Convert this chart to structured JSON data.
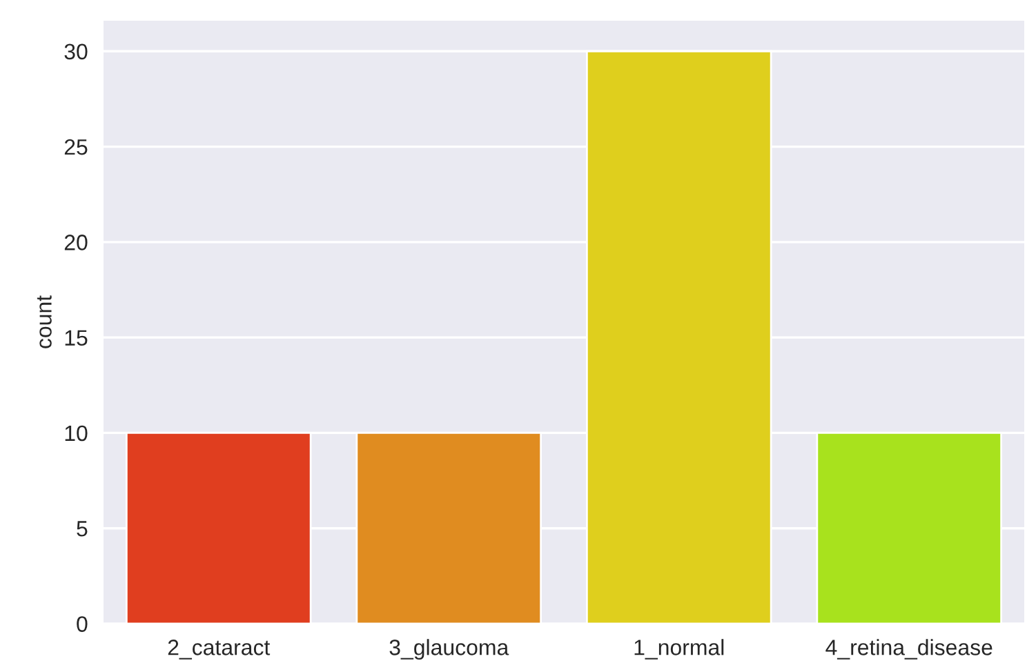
{
  "chart_data": {
    "type": "bar",
    "ylabel": "count",
    "categories": [
      "2_cataract",
      "3_glaucoma",
      "1_normal",
      "4_retina_disease"
    ],
    "values": [
      10,
      10,
      30,
      10
    ],
    "colors": [
      "#e03e1f",
      "#e08c20",
      "#dfcf1d",
      "#a8e21d"
    ],
    "ylim": [
      0,
      31.6
    ],
    "yticks": [
      0,
      5,
      10,
      15,
      20,
      25,
      30
    ],
    "grid": "y"
  }
}
